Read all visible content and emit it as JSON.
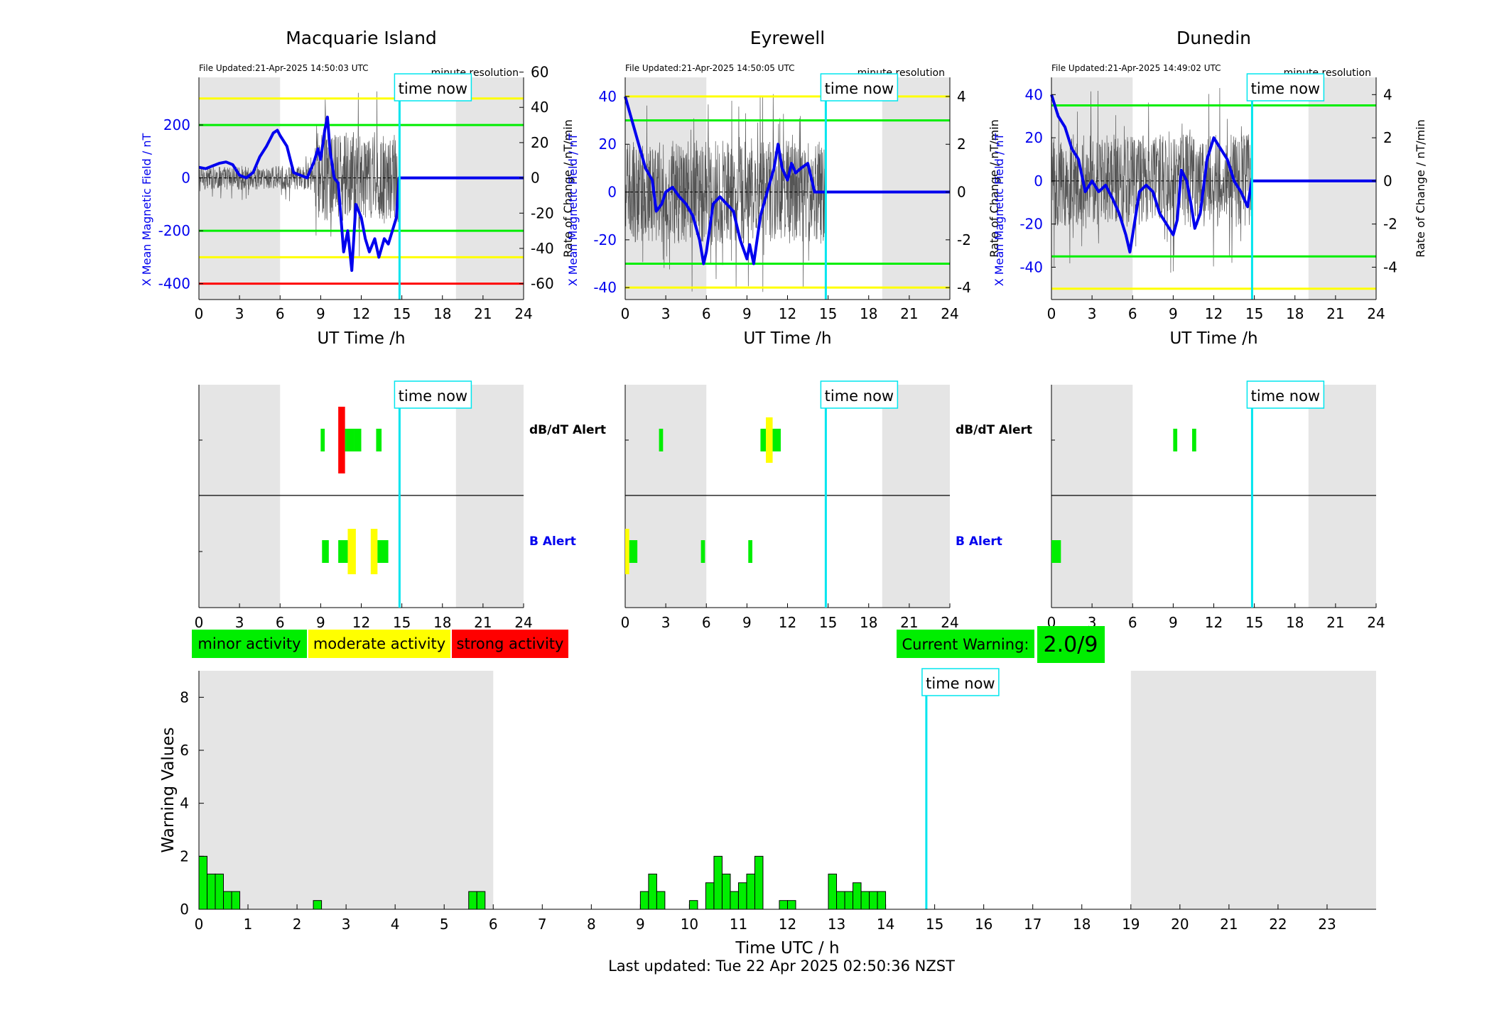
{
  "stations": [
    {
      "name": "Macquarie Island",
      "file_updated": "File Updated:21-Apr-2025 14:50:03 UTC",
      "resolution": "minute resolution",
      "y_left": {
        "label": "X Mean Magnetic Field / nT",
        "min": -460,
        "max": 380,
        "ticks": [
          -400,
          -200,
          0,
          200
        ]
      },
      "y_right": {
        "label": "Rate of Change / nT/min",
        "min": -69,
        "max": 57,
        "ticks": [
          -60,
          -40,
          -20,
          0,
          20,
          40,
          60
        ]
      },
      "thresholds": [
        {
          "value": 300,
          "color": "#ffff00"
        },
        {
          "value": 200,
          "color": "#00ee00"
        },
        {
          "value": -200,
          "color": "#00ee00"
        },
        {
          "value": -300,
          "color": "#ffff00"
        },
        {
          "value": -400,
          "color": "#ff0000"
        }
      ],
      "field_series": [
        [
          0,
          40
        ],
        [
          0.5,
          35
        ],
        [
          1,
          45
        ],
        [
          1.5,
          55
        ],
        [
          2,
          60
        ],
        [
          2.5,
          50
        ],
        [
          3,
          10
        ],
        [
          3.5,
          0
        ],
        [
          4,
          20
        ],
        [
          4.5,
          80
        ],
        [
          5,
          120
        ],
        [
          5.5,
          170
        ],
        [
          5.8,
          180
        ],
        [
          6,
          160
        ],
        [
          6.5,
          120
        ],
        [
          7,
          20
        ],
        [
          7.5,
          10
        ],
        [
          8,
          0
        ],
        [
          8.5,
          60
        ],
        [
          8.8,
          110
        ],
        [
          9,
          70
        ],
        [
          9.3,
          180
        ],
        [
          9.5,
          230
        ],
        [
          9.7,
          100
        ],
        [
          10,
          0
        ],
        [
          10.3,
          -20
        ],
        [
          10.5,
          -150
        ],
        [
          10.7,
          -280
        ],
        [
          11,
          -200
        ],
        [
          11.3,
          -350
        ],
        [
          11.6,
          -100
        ],
        [
          12,
          -150
        ],
        [
          12.3,
          -230
        ],
        [
          12.6,
          -280
        ],
        [
          13,
          -230
        ],
        [
          13.3,
          -300
        ],
        [
          13.7,
          -230
        ],
        [
          14,
          -250
        ],
        [
          14.3,
          -200
        ],
        [
          14.6,
          -150
        ],
        [
          14.8,
          0
        ],
        [
          24,
          0
        ]
      ],
      "activity_range": [
        8.5,
        14.8
      ],
      "dbdt_alerts": [
        {
          "start": 9.0,
          "end": 9.3,
          "level": "minor"
        },
        {
          "start": 10.3,
          "end": 10.8,
          "level": "strong"
        },
        {
          "start": 10.8,
          "end": 11.5,
          "level": "minor"
        },
        {
          "start": 11.5,
          "end": 12.0,
          "level": "minor"
        },
        {
          "start": 13.1,
          "end": 13.5,
          "level": "minor"
        }
      ],
      "b_alerts": [
        {
          "start": 9.1,
          "end": 9.6,
          "level": "minor"
        },
        {
          "start": 10.3,
          "end": 11.0,
          "level": "minor"
        },
        {
          "start": 11.0,
          "end": 11.6,
          "level": "moderate"
        },
        {
          "start": 12.7,
          "end": 13.2,
          "level": "moderate"
        },
        {
          "start": 13.2,
          "end": 14.0,
          "level": "minor"
        }
      ]
    },
    {
      "name": "Eyrewell",
      "file_updated": "File Updated:21-Apr-2025 14:50:05 UTC",
      "resolution": "minute resolution",
      "y_left": {
        "label": "X Mean Magnetic Field / nT",
        "min": -45,
        "max": 48,
        "ticks": [
          -40,
          -20,
          0,
          20,
          40
        ]
      },
      "y_right": {
        "label": "Rate of Change / nT/min",
        "min": -4.5,
        "max": 4.8,
        "ticks": [
          -4,
          -2,
          0,
          2,
          4
        ]
      },
      "thresholds": [
        {
          "value": 40,
          "color": "#ffff00"
        },
        {
          "value": 30,
          "color": "#00ee00"
        },
        {
          "value": -30,
          "color": "#00ee00"
        },
        {
          "value": -40,
          "color": "#ffff00"
        }
      ],
      "field_series": [
        [
          0,
          40
        ],
        [
          0.5,
          30
        ],
        [
          1,
          20
        ],
        [
          1.5,
          10
        ],
        [
          2,
          5
        ],
        [
          2.3,
          -8
        ],
        [
          2.7,
          -5
        ],
        [
          3,
          0
        ],
        [
          3.5,
          2
        ],
        [
          4,
          -2
        ],
        [
          4.5,
          -5
        ],
        [
          5,
          -10
        ],
        [
          5.5,
          -20
        ],
        [
          5.8,
          -30
        ],
        [
          6,
          -25
        ],
        [
          6.5,
          -5
        ],
        [
          7,
          -2
        ],
        [
          7.5,
          -5
        ],
        [
          8,
          -8
        ],
        [
          8.5,
          -20
        ],
        [
          9,
          -28
        ],
        [
          9.2,
          -22
        ],
        [
          9.5,
          -30
        ],
        [
          10,
          -10
        ],
        [
          10.5,
          0
        ],
        [
          11,
          10
        ],
        [
          11.3,
          20
        ],
        [
          11.6,
          10
        ],
        [
          12,
          5
        ],
        [
          12.3,
          12
        ],
        [
          12.6,
          8
        ],
        [
          13,
          10
        ],
        [
          13.5,
          12
        ],
        [
          14,
          0
        ],
        [
          14.8,
          0
        ],
        [
          24,
          0
        ]
      ],
      "activity_range": [
        0,
        14.8
      ],
      "dbdt_alerts": [
        {
          "start": 2.5,
          "end": 2.8,
          "level": "minor"
        },
        {
          "start": 10.0,
          "end": 10.4,
          "level": "minor"
        },
        {
          "start": 10.4,
          "end": 10.9,
          "level": "moderate"
        },
        {
          "start": 10.9,
          "end": 11.5,
          "level": "minor"
        }
      ],
      "b_alerts": [
        {
          "start": 0.0,
          "end": 0.3,
          "level": "moderate"
        },
        {
          "start": 0.3,
          "end": 0.9,
          "level": "minor"
        },
        {
          "start": 5.6,
          "end": 5.9,
          "level": "minor"
        },
        {
          "start": 9.1,
          "end": 9.4,
          "level": "minor"
        }
      ]
    },
    {
      "name": "Dunedin",
      "file_updated": "File Updated:21-Apr-2025 14:49:02 UTC",
      "resolution": "minute resolution",
      "y_left": {
        "label": "X Mean Magnetic Field / nT",
        "min": -55,
        "max": 48,
        "ticks": [
          -40,
          -20,
          0,
          20,
          40
        ]
      },
      "y_right": {
        "label": "Rate of Change / nT/min",
        "min": -5.5,
        "max": 4.8,
        "ticks": [
          -4,
          -2,
          0,
          2,
          4
        ]
      },
      "thresholds": [
        {
          "value": 35,
          "color": "#00ee00"
        },
        {
          "value": -35,
          "color": "#00ee00"
        },
        {
          "value": -50,
          "color": "#ffff00"
        }
      ],
      "field_series": [
        [
          0,
          40
        ],
        [
          0.5,
          30
        ],
        [
          1,
          25
        ],
        [
          1.5,
          15
        ],
        [
          2,
          10
        ],
        [
          2.5,
          -5
        ],
        [
          3,
          0
        ],
        [
          3.5,
          -5
        ],
        [
          4,
          -2
        ],
        [
          4.5,
          -8
        ],
        [
          5,
          -15
        ],
        [
          5.5,
          -25
        ],
        [
          5.8,
          -33
        ],
        [
          6,
          -25
        ],
        [
          6.5,
          -5
        ],
        [
          7,
          -2
        ],
        [
          7.5,
          -5
        ],
        [
          8,
          -15
        ],
        [
          8.5,
          -20
        ],
        [
          9,
          -25
        ],
        [
          9.3,
          -18
        ],
        [
          9.6,
          5
        ],
        [
          10,
          0
        ],
        [
          10.3,
          -10
        ],
        [
          10.6,
          -22
        ],
        [
          11,
          -15
        ],
        [
          11.5,
          10
        ],
        [
          12,
          20
        ],
        [
          12.5,
          15
        ],
        [
          13,
          10
        ],
        [
          13.5,
          0
        ],
        [
          14,
          -5
        ],
        [
          14.5,
          -12
        ],
        [
          14.8,
          0
        ],
        [
          24,
          0
        ]
      ],
      "activity_range": [
        0,
        14.8
      ],
      "dbdt_alerts": [
        {
          "start": 9.0,
          "end": 9.3,
          "level": "minor"
        },
        {
          "start": 10.4,
          "end": 10.7,
          "level": "minor"
        }
      ],
      "b_alerts": [
        {
          "start": 0.0,
          "end": 0.7,
          "level": "minor"
        }
      ]
    }
  ],
  "time_axis": {
    "label": "UT Time /h",
    "min": 0,
    "max": 24,
    "ticks": [
      0,
      3,
      6,
      9,
      12,
      15,
      18,
      21,
      24
    ]
  },
  "time_now": 14.83,
  "time_now_label": "time now",
  "night_shading": [
    [
      0,
      6
    ],
    [
      19,
      24
    ]
  ],
  "alert_labels": {
    "dbdt": "dB/dT Alert",
    "b": "B Alert"
  },
  "legend": {
    "minor": {
      "label": "minor activity",
      "color": "#00ee00"
    },
    "moderate": {
      "label": "moderate activity",
      "color": "#ffff00"
    },
    "strong": {
      "label": "strong activity",
      "color": "#ff0000"
    }
  },
  "current_warning": {
    "label": "Current Warning:",
    "value": "2.0/9",
    "color": "#00ee00"
  },
  "chart_data": {
    "type": "bar",
    "xlabel": "Time UTC / h",
    "ylabel": "Warning Values",
    "xlim": [
      0,
      24
    ],
    "ylim": [
      0,
      9
    ],
    "x_ticks": [
      0,
      1,
      2,
      3,
      4,
      5,
      6,
      7,
      8,
      9,
      10,
      11,
      12,
      13,
      14,
      15,
      16,
      17,
      18,
      19,
      20,
      21,
      22,
      23
    ],
    "y_ticks": [
      0,
      2,
      4,
      6,
      8
    ],
    "bin_width_h": 0.1667,
    "bar_color": "#00ee00",
    "bars": [
      [
        0.0,
        2.0
      ],
      [
        0.167,
        1.33
      ],
      [
        0.333,
        1.33
      ],
      [
        0.5,
        0.67
      ],
      [
        0.667,
        0.67
      ],
      [
        2.333,
        0.33
      ],
      [
        5.5,
        0.67
      ],
      [
        5.667,
        0.67
      ],
      [
        9.0,
        0.67
      ],
      [
        9.167,
        1.33
      ],
      [
        9.333,
        0.67
      ],
      [
        10.0,
        0.33
      ],
      [
        10.333,
        1.0
      ],
      [
        10.5,
        2.0
      ],
      [
        10.667,
        1.33
      ],
      [
        10.833,
        0.67
      ],
      [
        11.0,
        1.0
      ],
      [
        11.167,
        1.33
      ],
      [
        11.333,
        2.0
      ],
      [
        11.833,
        0.33
      ],
      [
        12.0,
        0.33
      ],
      [
        12.833,
        1.33
      ],
      [
        13.0,
        0.67
      ],
      [
        13.167,
        0.67
      ],
      [
        13.333,
        1.0
      ],
      [
        13.5,
        0.67
      ],
      [
        13.667,
        0.67
      ],
      [
        13.833,
        0.67
      ]
    ]
  },
  "last_updated": "Last updated: Tue 22 Apr 2025 02:50:36 NZST"
}
